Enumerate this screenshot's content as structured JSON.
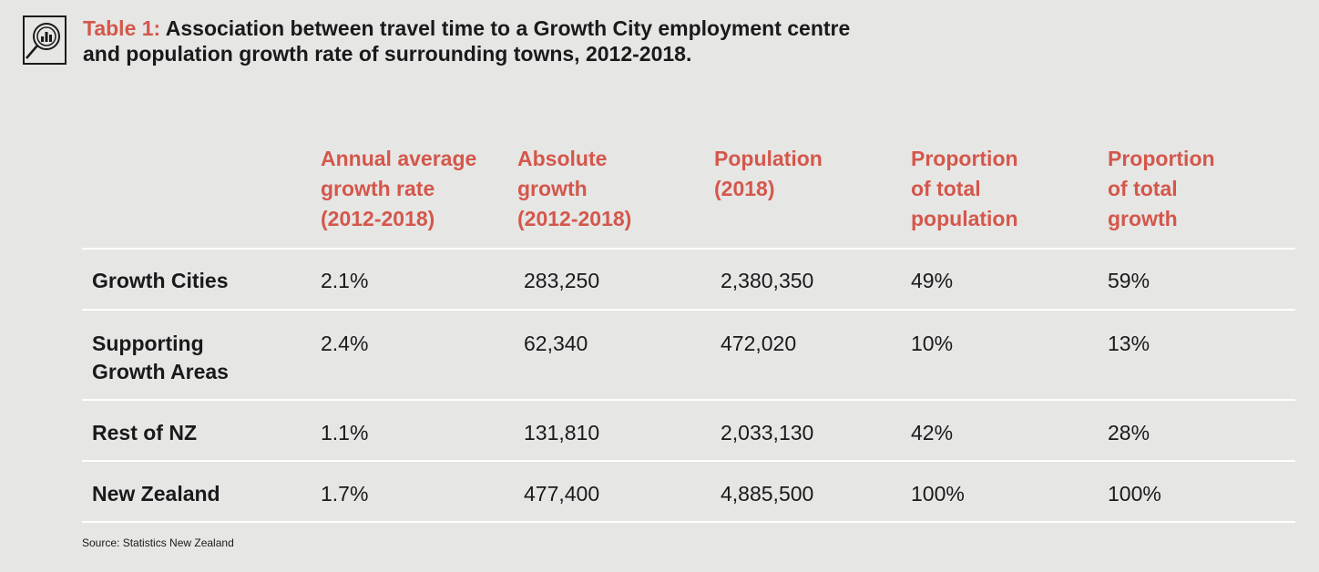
{
  "header": {
    "table_tag": "Table 1:",
    "title_line1": "Association between travel time to a Growth City employment centre",
    "title_line2": "and population growth rate of surrounding towns, 2012-2018.",
    "icon": "magnifier-bar-chart-icon"
  },
  "columns": [
    {
      "lines": [
        "Annual average",
        "growth rate",
        "(2012-2018)"
      ]
    },
    {
      "lines": [
        "Absolute",
        "growth",
        "(2012-2018)"
      ]
    },
    {
      "lines": [
        "Population",
        "(2018)"
      ]
    },
    {
      "lines": [
        "Proportion",
        "of total",
        "population"
      ]
    },
    {
      "lines": [
        "Proportion",
        "of total",
        "growth"
      ]
    }
  ],
  "rows": [
    {
      "label_lines": [
        "Growth Cities"
      ],
      "values": [
        "2.1%",
        "283,250",
        "2,380,350",
        "49%",
        "59%"
      ]
    },
    {
      "label_lines": [
        "Supporting",
        "Growth Areas"
      ],
      "values": [
        "2.4%",
        "62,340",
        "472,020",
        "10%",
        "13%"
      ]
    },
    {
      "label_lines": [
        "Rest of NZ"
      ],
      "values": [
        "1.1%",
        "131,810",
        "2,033,130",
        "42%",
        "28%"
      ]
    },
    {
      "label_lines": [
        "New Zealand"
      ],
      "values": [
        "1.7%",
        "477,400",
        "4,885,500",
        "100%",
        "100%"
      ]
    }
  ],
  "source": "Source: Statistics New Zealand",
  "colors": {
    "accent": "#d4574b",
    "background": "#e6e6e5",
    "rule": "#ffffff",
    "text": "#1a1a1a"
  }
}
